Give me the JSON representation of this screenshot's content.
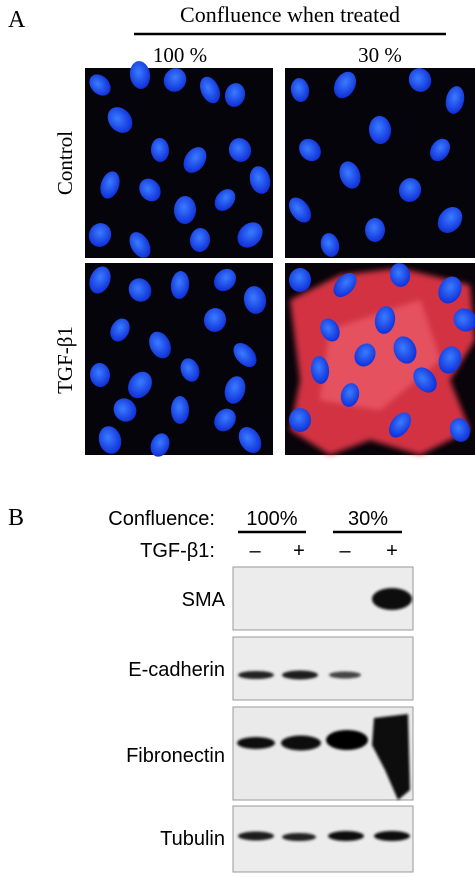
{
  "panel_a": {
    "label": "A",
    "header": "Confluence when treated",
    "columns": [
      "100 %",
      "30 %"
    ],
    "rows": [
      "Control",
      "TGF-β1"
    ]
  },
  "panel_b": {
    "label": "B",
    "confluence_label": "Confluence:",
    "groups": [
      "100%",
      "30%"
    ],
    "treatment_label": "TGF-β1:",
    "treatments": [
      "–",
      "+",
      "–",
      "+"
    ],
    "blots": [
      "SMA",
      "E-cadherin",
      "Fibronectin",
      "Tubulin"
    ]
  }
}
